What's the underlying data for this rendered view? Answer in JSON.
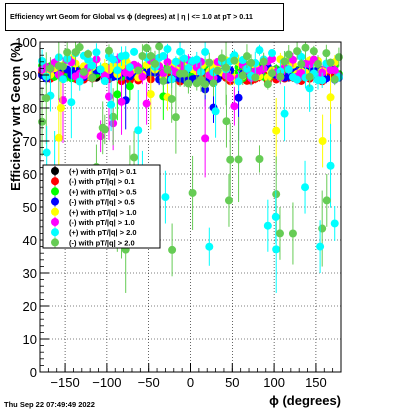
{
  "chart_data": {
    "type": "scatter",
    "title": "Efficiency wrt Geom for Global vs ϕ (degrees) at | η | <= 1.0 at pT > 0.11",
    "xlabel": "ϕ (degrees)",
    "ylabel": "Efficiency wrt Geom (%)",
    "xlim": [
      -180,
      180
    ],
    "ylim": [
      0,
      100
    ],
    "x_ticks": [
      -150,
      -100,
      -50,
      0,
      50,
      100,
      150
    ],
    "x_tick_labels": [
      "−150",
      "−100",
      "−50",
      "0",
      "50",
      "100",
      "150"
    ],
    "y_ticks": [
      0,
      10,
      20,
      30,
      40,
      50,
      60,
      70,
      80,
      90,
      100
    ],
    "y_tick_labels": [
      "0",
      "10",
      "20",
      "30",
      "40",
      "50",
      "60",
      "70",
      "80",
      "90",
      "100"
    ],
    "grid": true,
    "legend_position": "left-middle",
    "series": [
      {
        "name": "(+) with pT/|q| > 0.1",
        "color": "#000000",
        "marker": "circle",
        "base": 90,
        "spread": 1.5,
        "outlier_rate": 0.0,
        "low": 85
      },
      {
        "name": "(-) with pT/|q| > 0.1",
        "color": "#ff0000",
        "marker": "circle",
        "base": 89.5,
        "spread": 1.5,
        "outlier_rate": 0.0,
        "low": 85
      },
      {
        "name": "(+) with pT/|q| > 0.5",
        "color": "#00ff00",
        "marker": "circle",
        "base": 91,
        "spread": 2,
        "outlier_rate": 0.04,
        "low": 80
      },
      {
        "name": "(-) with pT/|q| > 0.5",
        "color": "#0000ff",
        "marker": "circle",
        "base": 90.5,
        "spread": 2,
        "outlier_rate": 0.04,
        "low": 80
      },
      {
        "name": "(+) with pT/|q| > 1.0",
        "color": "#ffff00",
        "marker": "circle",
        "base": 92,
        "spread": 3,
        "outlier_rate": 0.08,
        "low": 70
      },
      {
        "name": "(-) with pT/|q| > 1.0",
        "color": "#ff00ff",
        "marker": "circle",
        "base": 92,
        "spread": 3,
        "outlier_rate": 0.08,
        "low": 70
      },
      {
        "name": "(+) with pT/|q| > 2.0",
        "color": "#00ffff",
        "marker": "circle",
        "base": 93,
        "spread": 5,
        "outlier_rate": 0.18,
        "low": 37
      },
      {
        "name": "(-) with pT/|q| > 2.0",
        "color": "#66cc55",
        "marker": "circle",
        "base": 93,
        "spread": 6,
        "outlier_rate": 0.22,
        "low": 37
      }
    ],
    "highlighted_points": [
      {
        "series": 6,
        "x": -172,
        "y": 66.5
      },
      {
        "series": 6,
        "x": -30,
        "y": 53
      },
      {
        "series": 6,
        "x": 102,
        "y": 47
      },
      {
        "series": 6,
        "x": 137,
        "y": 56
      },
      {
        "series": 6,
        "x": 155,
        "y": 38
      },
      {
        "series": 7,
        "x": -22,
        "y": 37
      },
      {
        "series": 7,
        "x": 46,
        "y": 52
      },
      {
        "series": 7,
        "x": 107,
        "y": 42
      },
      {
        "series": 7,
        "x": 163,
        "y": 52
      },
      {
        "series": 7,
        "x": -105,
        "y": 74
      },
      {
        "series": 7,
        "x": 43,
        "y": 76
      },
      {
        "series": 4,
        "x": -155,
        "y": 80
      },
      {
        "series": 4,
        "x": 158,
        "y": 70
      },
      {
        "series": 6,
        "x": -95,
        "y": 81
      },
      {
        "series": 6,
        "x": 30,
        "y": 79
      }
    ]
  },
  "footer": {
    "timestamp": "Thu Sep 22 07:49:49 2022"
  }
}
